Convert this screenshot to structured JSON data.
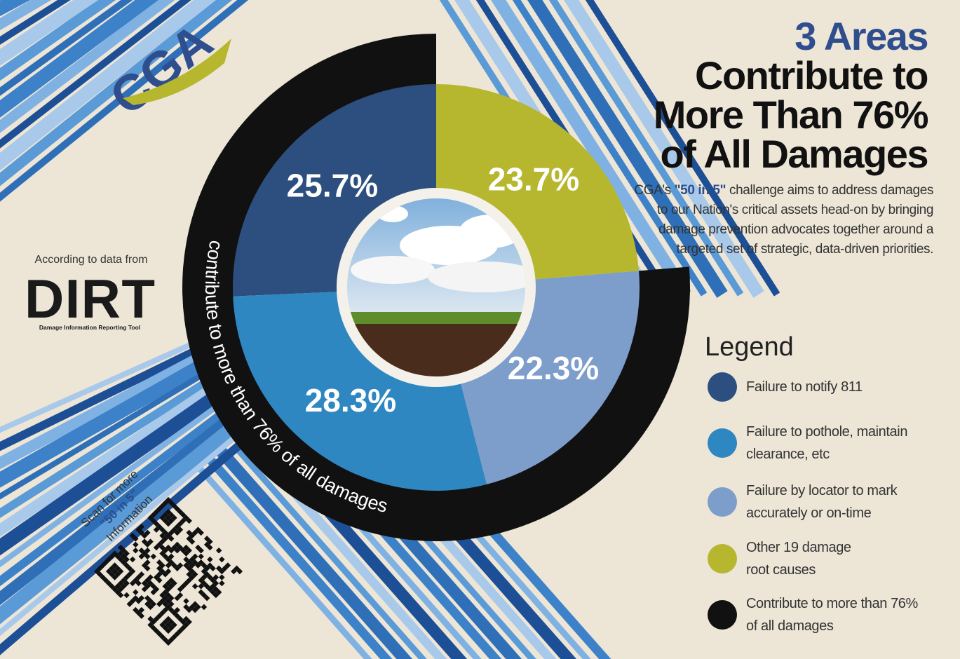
{
  "logo": "CGA",
  "source": {
    "intro": "According to data from",
    "name": "DIRT",
    "full_name": "Damage Information Reporting Tool"
  },
  "qr": {
    "lines": [
      "Scan for more",
      "\"50 in 5\"",
      "Information"
    ]
  },
  "description": {
    "parts": [
      "CGA's ",
      "\"50 in 5\"",
      " challenge aims to address damages to our Nation's critical assets head-on by bringing damage prevention advocates together around a targeted set of strategic, data-driven priorities."
    ]
  },
  "chart_data": {
    "type": "pie",
    "title_lines": [
      "3 Areas",
      "Contribute to",
      "More Than 76%",
      "of All Damages"
    ],
    "categories": [
      "Failure to notify 811",
      "Failure to pothole, maintain clearance, etc",
      "Failure by locator to mark accurately or on-time",
      "Other 19 damage root causes"
    ],
    "values": [
      25.7,
      28.3,
      22.3,
      23.7
    ],
    "value_labels": [
      "25.7%",
      "28.3%",
      "22.3%",
      "23.7%"
    ],
    "colors": [
      "#2d4f7f",
      "#2f87c2",
      "#7d9dcb",
      "#b6b72f"
    ],
    "direction": "counterclockwise",
    "legend_title": "Legend",
    "legend": "right",
    "ring": {
      "text": "contribute to more than 76% of all damages",
      "legend_label": "Contribute to more than 76% of all damages",
      "color": "#111111"
    }
  }
}
